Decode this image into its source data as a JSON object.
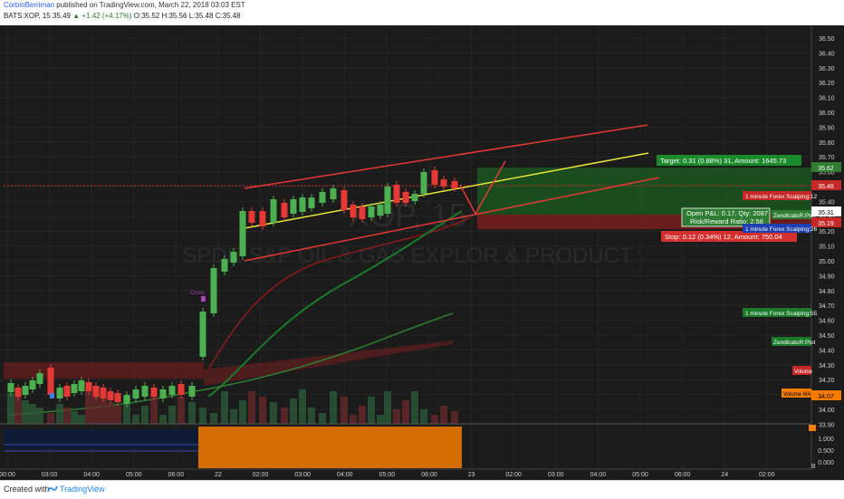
{
  "header": {
    "author": "CorbinBerriman",
    "published": "published on TradingView.com, March 22, 2018 03:03 EST",
    "symbol": "BATS:XOP, 15",
    "last": "35.49",
    "change": "▲ +1.42 (+4.17%)",
    "ohlc": "O:35.52 H:35.56 L:35.48 C:35.48"
  },
  "watermark": {
    "ticker": "XOP, 15",
    "name": "SPDR S&P OIL & GAS EXPLOR & PRODUCT"
  },
  "price_axis": {
    "ticks": [
      "36.50",
      "36.40",
      "36.30",
      "36.20",
      "36.10",
      "36.00",
      "35.90",
      "35.80",
      "35.70",
      "35.60",
      "35.50",
      "35.40",
      "35.30",
      "35.20",
      "35.10",
      "35.00",
      "34.90",
      "34.80",
      "34.70",
      "34.60",
      "34.50",
      "34.40",
      "34.30",
      "34.20",
      "34.10",
      "34.00",
      "33.90"
    ],
    "markers": [
      {
        "text": "35.62",
        "color": "#2e7d32"
      },
      {
        "text": "35.48",
        "color": "#c62828"
      },
      {
        "text": "35.31",
        "color": "#ffffff"
      },
      {
        "text": "35.19",
        "color": "#c62828"
      },
      {
        "text": "34.07",
        "color": "#f57c00"
      }
    ]
  },
  "indicator_axis": {
    "ticks": [
      "1.000",
      "0.500",
      "0.000"
    ],
    "letter": "B"
  },
  "time_axis": {
    "ticks": [
      "00:00",
      "03:00",
      "04:00",
      "05:00",
      "06:00",
      "22",
      "02:00",
      "03:00",
      "04:00",
      "05:00",
      "06:00",
      "23",
      "02:00",
      "03:00",
      "04:00",
      "05:00",
      "06:00",
      "24",
      "02:00"
    ]
  },
  "position": {
    "target": "Target: 0.31 (0.88%) 31, Amount: 1645.73",
    "open_pnl": "Open P&L: 0.17, Qty: 2087",
    "risk_reward": "Risk/Reward Ratio: 2.58",
    "stop": "Stop: 0.12 (0.34%) 12, Amount: 750.04"
  },
  "labels": {
    "scalp12": "1 minute Forex Scalping:12",
    "zplot1": "ZendicatoR:Plot",
    "scalp26": "1 minute Forex Scalping:26",
    "scalp55": "1 minute Forex Scalping:55",
    "zplot2": "ZendicatoR:Plot",
    "volume": "Volume",
    "volume_ma": "Volume MA",
    "cross": "Cross"
  },
  "footer": {
    "created": "Created with",
    "brand": "TradingView"
  },
  "colors": {
    "up": "#4caf50",
    "down": "#e53935",
    "channel": "#e53935",
    "midline": "#e6e63a",
    "target_zone": "#1b5e20",
    "stop_zone": "#7f1d1d",
    "indicator": "#f57c00"
  }
}
